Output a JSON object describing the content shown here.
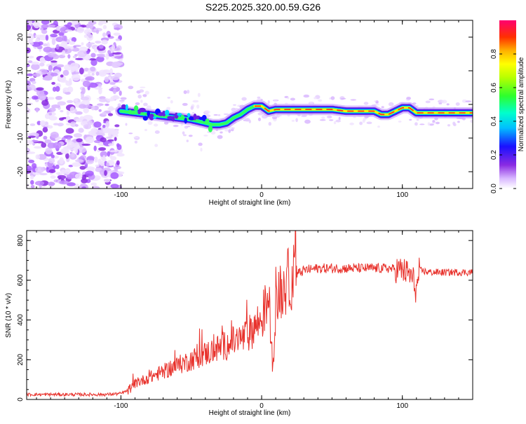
{
  "title": "S225.2025.320.00.59.G26",
  "chart_data": [
    {
      "type": "heatmap",
      "xlabel": "Height of straight line (km)",
      "ylabel": "Frequency (Hz)",
      "xlim": [
        -167,
        150
      ],
      "ylim": [
        -25,
        25
      ],
      "xticks": [
        -100,
        0,
        100
      ],
      "xtick_labels": [
        "-100",
        "0",
        "100"
      ],
      "yticks": [
        -20,
        -10,
        0,
        10,
        20
      ],
      "ytick_labels": [
        "-20",
        "-10",
        "0",
        "10",
        "20"
      ],
      "colorbar": {
        "label": "Normalized spectral amplitude",
        "range": [
          0,
          1
        ],
        "ticks": [
          0.0,
          0.2,
          0.4,
          0.6,
          0.8
        ],
        "tick_labels": [
          "0.0",
          "0.2",
          "0.4",
          "0.6",
          "0.8"
        ],
        "colormap": "rainbow (white-violet-blue-cyan-green-yellow-red)"
      },
      "ridge": {
        "x": [
          -100,
          -90,
          -80,
          -70,
          -60,
          -50,
          -45,
          -40,
          -35,
          -30,
          -25,
          -20,
          -15,
          -10,
          -5,
          0,
          5,
          10,
          20,
          30,
          40,
          50,
          60,
          70,
          80,
          85,
          90,
          95,
          100,
          105,
          110,
          120,
          130,
          140,
          150
        ],
        "frequency": [
          -2,
          -2.5,
          -3,
          -3.5,
          -4,
          -4.5,
          -5,
          -5.5,
          -6,
          -6,
          -5.5,
          -4,
          -3,
          -1.5,
          -0.5,
          -0.5,
          -2,
          -1.5,
          -1.5,
          -1.5,
          -1.5,
          -1.5,
          -2,
          -2,
          -2,
          -3,
          -3,
          -2,
          -1,
          -1,
          -2.5,
          -2.5,
          -2.5,
          -2.5,
          -2.5
        ]
      },
      "noise_region_x": [
        -167,
        -100
      ]
    },
    {
      "type": "line",
      "xlabel": "Height of straight line (km)",
      "ylabel": "SNR (10 * v/v)",
      "xlim": [
        -167,
        150
      ],
      "ylim": [
        0,
        850
      ],
      "xticks": [
        -100,
        0,
        100
      ],
      "xtick_labels": [
        "-100",
        "0",
        "100"
      ],
      "yticks": [
        0,
        200,
        400,
        600,
        800
      ],
      "ytick_labels": [
        "0",
        "200",
        "400",
        "600",
        "800"
      ],
      "color": "#e8312b",
      "series": [
        {
          "name": "SNR",
          "x": [
            -167,
            -140,
            -110,
            -100,
            -95,
            -90,
            -80,
            -70,
            -60,
            -50,
            -40,
            -30,
            -20,
            -10,
            -5,
            0,
            5,
            8,
            10,
            15,
            20,
            30,
            40,
            60,
            80,
            90,
            100,
            105,
            108,
            110,
            112,
            120,
            130,
            140,
            150
          ],
          "y": [
            25,
            25,
            25,
            30,
            45,
            80,
            110,
            140,
            170,
            200,
            230,
            260,
            290,
            320,
            370,
            400,
            520,
            150,
            470,
            560,
            610,
            650,
            660,
            660,
            660,
            660,
            650,
            630,
            600,
            540,
            650,
            640,
            640,
            640,
            640
          ]
        }
      ]
    }
  ]
}
